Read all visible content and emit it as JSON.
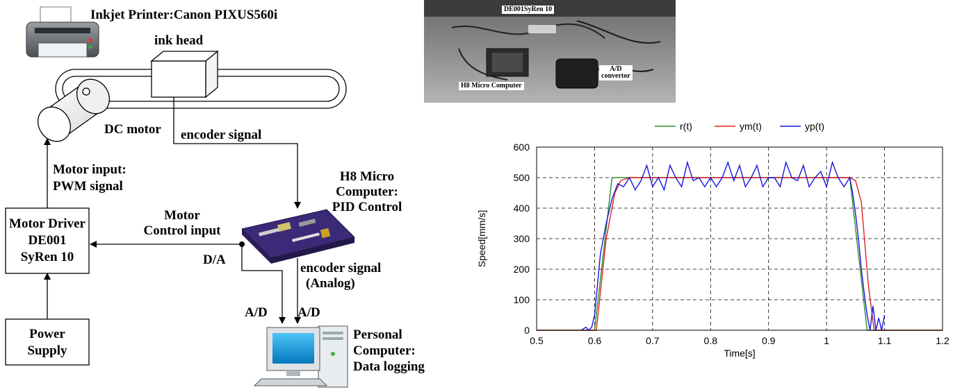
{
  "diagram": {
    "printer_label": "Inkjet Printer:Canon PIXUS560i",
    "ink_head_label": "ink head",
    "dc_motor_label": "DC motor",
    "encoder_signal_top": "encoder signal",
    "motor_input_line1": "Motor input:",
    "motor_input_line2": "PWM signal",
    "h8_line1": "H8 Micro",
    "h8_line2": "Computer:",
    "h8_line3": "PID Control",
    "motor_control_line1": "Motor",
    "motor_control_line2": "Control input",
    "driver_line1": "Motor Driver",
    "driver_line2": "DE001",
    "driver_line3": "SyRen 10",
    "da_label": "D/A",
    "encoder_analog_line1": "encoder signal",
    "encoder_analog_line2": "(Analog)",
    "ad_label_1": "A/D",
    "ad_label_2": "A/D",
    "power_line1": "Power",
    "power_line2": "Supply",
    "pc_line1": "Personal",
    "pc_line2": "Computer:",
    "pc_line3": "Data logging"
  },
  "photo": {
    "label_driver": "DE001SyRen 10",
    "label_h8": "H8 Micro Computer",
    "label_ad_line1": "A/D",
    "label_ad_line2": "convertor"
  },
  "chart_data": {
    "type": "line",
    "xlabel": "Time[s]",
    "ylabel": "Speed[mm/s]",
    "xlim": [
      0.5,
      1.2
    ],
    "ylim": [
      0,
      600
    ],
    "xticks": [
      "0.5",
      "0.6",
      "0.7",
      "0.8",
      "0.9",
      "1",
      "1.1",
      "1.2"
    ],
    "yticks": [
      "0",
      "100",
      "200",
      "300",
      "400",
      "500",
      "600"
    ],
    "grid": true,
    "legend_position": "top",
    "series": [
      {
        "name": "r(t)",
        "color": "#2e8b2e",
        "x": [
          0.5,
          0.6,
          0.63,
          1.04,
          1.07,
          1.2
        ],
        "y": [
          0,
          0,
          500,
          500,
          0,
          0
        ]
      },
      {
        "name": "ym(t)",
        "color": "#dd2222",
        "x": [
          0.5,
          0.603,
          0.62,
          0.635,
          0.645,
          0.66,
          1.04,
          1.05,
          1.06,
          1.072,
          1.082,
          1.2
        ],
        "y": [
          0,
          0,
          300,
          450,
          490,
          500,
          500,
          490,
          420,
          150,
          0,
          0
        ]
      },
      {
        "name": "yp(t)",
        "color": "#1515dd",
        "x": [
          0.577,
          0.585,
          0.59,
          0.595,
          0.6,
          0.605,
          0.61,
          0.62,
          0.63,
          0.64,
          0.65,
          0.66,
          0.67,
          0.68,
          0.69,
          0.7,
          0.71,
          0.72,
          0.73,
          0.74,
          0.75,
          0.76,
          0.77,
          0.78,
          0.79,
          0.8,
          0.81,
          0.82,
          0.83,
          0.84,
          0.85,
          0.86,
          0.87,
          0.88,
          0.89,
          0.9,
          0.91,
          0.92,
          0.93,
          0.94,
          0.95,
          0.96,
          0.97,
          0.98,
          0.99,
          1.0,
          1.01,
          1.02,
          1.03,
          1.04,
          1.045,
          1.05,
          1.055,
          1.06,
          1.065,
          1.07,
          1.075,
          1.08,
          1.085,
          1.09,
          1.095,
          1.1
        ],
        "y": [
          0,
          10,
          0,
          10,
          50,
          150,
          250,
          350,
          430,
          480,
          470,
          500,
          460,
          490,
          540,
          470,
          500,
          460,
          540,
          500,
          470,
          550,
          490,
          500,
          470,
          500,
          470,
          500,
          550,
          490,
          540,
          470,
          500,
          540,
          470,
          500,
          500,
          470,
          550,
          500,
          490,
          540,
          470,
          500,
          520,
          470,
          550,
          500,
          470,
          500,
          450,
          380,
          300,
          200,
          120,
          50,
          0,
          80,
          0,
          40,
          0,
          50
        ]
      }
    ]
  }
}
